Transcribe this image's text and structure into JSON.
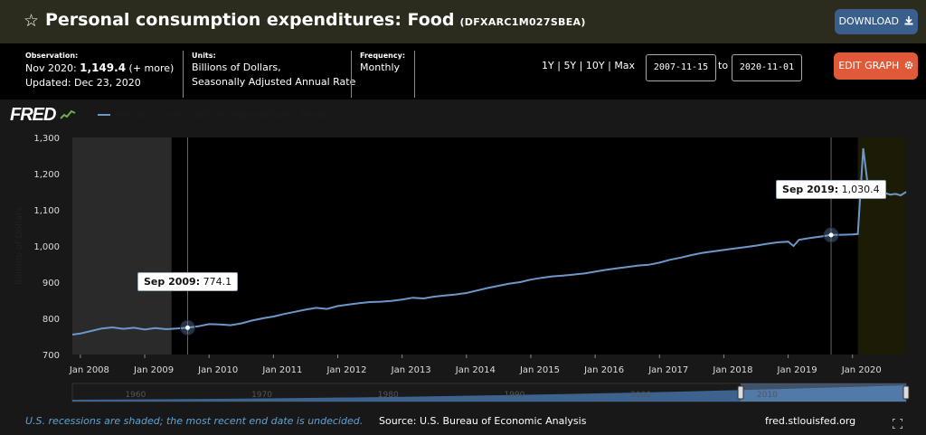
{
  "header": {
    "title": "Personal consumption expenditures: Food",
    "series_code": "(DFXARC1M027SBEA)",
    "download_label": "DOWNLOAD"
  },
  "info": {
    "observation_label": "Observation:",
    "observation_period": "Nov 2020:",
    "observation_value": "1,149.4",
    "observation_more": "(+ more)",
    "updated": "Updated: Dec 23, 2020",
    "units_label": "Units:",
    "units_line1": "Billions of Dollars,",
    "units_line2": "Seasonally Adjusted Annual Rate",
    "frequency_label": "Frequency:",
    "frequency_value": "Monthly"
  },
  "controls": {
    "range_1y": "1Y",
    "range_5y": "5Y",
    "range_10y": "10Y",
    "range_max": "Max",
    "range_sep": "|",
    "start_date": "2007-11-15",
    "to_label": "to",
    "end_date": "2020-11-01",
    "edit_label": "EDIT GRAPH"
  },
  "logo": "FRED",
  "footer": {
    "recession_note": "U.S. recessions are shaded; the most recent end date is undecided.",
    "source": "Source: U.S. Bureau of Economic Analysis",
    "url": "fred.stlouisfed.org"
  },
  "tooltips": [
    {
      "label": "Sep 2009:",
      "value": "774.1",
      "x": 2009.667,
      "y": 774.1
    },
    {
      "label": "Sep 2019:",
      "value": "1,030.4",
      "x": 2019.667,
      "y": 1030.4
    }
  ],
  "colors": {
    "line": "#6d97c8",
    "recession": "#2a2a2a",
    "recession_recent": "#1c1c06",
    "plot_bg": "#000000",
    "title_bg": "#2b2b1e",
    "download": "#3b5f8c",
    "edit": "#e05a3a"
  },
  "icons": {
    "star": "star-icon",
    "download": "download-icon",
    "gear": "gear-icon",
    "expand": "expand-icon"
  },
  "chart_data": {
    "type": "line",
    "title": "",
    "xlabel": "",
    "ylabel": "Billions of Dollars",
    "ylim": [
      700,
      1300
    ],
    "xlim": [
      2007.875,
      2020.833
    ],
    "yticks": [
      700,
      800,
      900,
      1000,
      1100,
      1200,
      1300
    ],
    "ytick_labels": [
      "700",
      "800",
      "900",
      "1,000",
      "1,100",
      "1,200",
      "1,300"
    ],
    "xticks": [
      2008,
      2009,
      2010,
      2011,
      2012,
      2013,
      2014,
      2015,
      2016,
      2017,
      2018,
      2019,
      2020
    ],
    "xtick_labels": [
      "Jan 2008",
      "Jan 2009",
      "Jan 2010",
      "Jan 2011",
      "Jan 2012",
      "Jan 2013",
      "Jan 2014",
      "Jan 2015",
      "Jan 2016",
      "Jan 2017",
      "Jan 2018",
      "Jan 2019",
      "Jan 2020"
    ],
    "legend": "top-left",
    "grid": false,
    "recessions": [
      [
        2007.875,
        2009.417
      ],
      [
        2020.083,
        2020.833
      ]
    ],
    "series": [
      {
        "name": "Personal consumption expenditures: Food",
        "x": [
          2007.875,
          2008.0,
          2008.167,
          2008.333,
          2008.5,
          2008.667,
          2008.833,
          2009.0,
          2009.167,
          2009.333,
          2009.5,
          2009.667,
          2009.833,
          2010.0,
          2010.167,
          2010.333,
          2010.5,
          2010.667,
          2010.833,
          2011.0,
          2011.167,
          2011.333,
          2011.5,
          2011.667,
          2011.833,
          2012.0,
          2012.167,
          2012.333,
          2012.5,
          2012.667,
          2012.833,
          2013.0,
          2013.167,
          2013.333,
          2013.5,
          2013.667,
          2013.833,
          2014.0,
          2014.167,
          2014.333,
          2014.5,
          2014.667,
          2014.833,
          2015.0,
          2015.167,
          2015.333,
          2015.5,
          2015.667,
          2015.833,
          2016.0,
          2016.167,
          2016.333,
          2016.5,
          2016.667,
          2016.833,
          2017.0,
          2017.167,
          2017.333,
          2017.5,
          2017.667,
          2017.833,
          2018.0,
          2018.167,
          2018.333,
          2018.5,
          2018.667,
          2018.833,
          2019.0,
          2019.083,
          2019.167,
          2019.333,
          2019.5,
          2019.667,
          2019.833,
          2020.0,
          2020.083,
          2020.167,
          2020.25,
          2020.333,
          2020.417,
          2020.5,
          2020.583,
          2020.667,
          2020.75,
          2020.833
        ],
        "y": [
          755,
          758,
          765,
          772,
          775,
          771,
          774,
          769,
          773,
          770,
          772,
          774.1,
          778,
          784,
          783,
          781,
          786,
          794,
          800,
          805,
          812,
          818,
          824,
          829,
          826,
          834,
          838,
          842,
          845,
          846,
          848,
          852,
          857,
          855,
          860,
          863,
          866,
          870,
          877,
          884,
          890,
          896,
          900,
          907,
          912,
          916,
          918,
          921,
          924,
          929,
          934,
          938,
          942,
          946,
          948,
          954,
          962,
          968,
          975,
          981,
          985,
          989,
          993,
          997,
          1001,
          1006,
          1010,
          1012,
          1000,
          1017,
          1022,
          1026,
          1030.4,
          1031,
          1032,
          1033,
          1270,
          1150,
          1148,
          1152,
          1147,
          1142,
          1144,
          1140,
          1149.4
        ]
      }
    ],
    "overview": {
      "tick_labels": [
        "1960",
        "1970",
        "1980",
        "1990",
        "2000",
        "2010"
      ],
      "ticks": [
        1960,
        1970,
        1980,
        1990,
        2000,
        2010
      ]
    }
  }
}
